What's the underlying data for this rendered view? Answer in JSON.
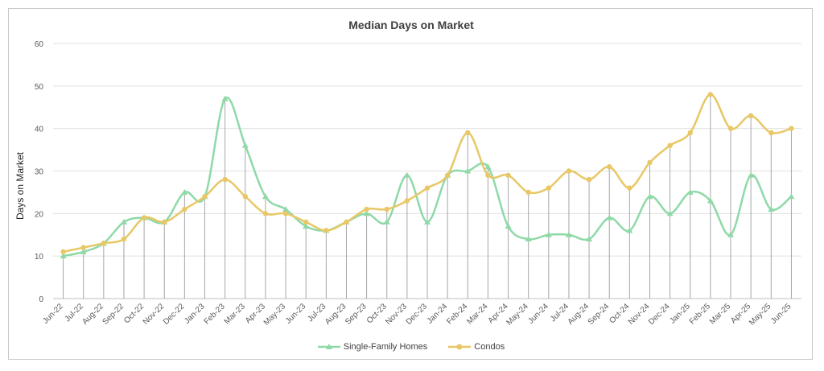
{
  "chart_data": {
    "type": "line",
    "title": "Median Days on Market",
    "ylabel": "Days on Market",
    "xlabel": "",
    "ylim": [
      0,
      60
    ],
    "yticks": [
      0,
      10,
      20,
      30,
      40,
      50,
      60
    ],
    "grid": true,
    "legend": "bottom",
    "categories": [
      "Jun-22",
      "Jul-22",
      "Aug-22",
      "Sep-22",
      "Oct-22",
      "Nov-22",
      "Dec-22",
      "Jan-23",
      "Feb-23",
      "Mar-23",
      "Apr-23",
      "May-23",
      "Jun-23",
      "Jul-23",
      "Aug-23",
      "Sep-23",
      "Oct-23",
      "Nov-23",
      "Dec-23",
      "Jan-24",
      "Feb-24",
      "Mar-24",
      "Apr-24",
      "May-24",
      "Jun-24",
      "Jul-24",
      "Aug-24",
      "Sep-24",
      "Oct-24",
      "Nov-24",
      "Dec-24",
      "Jan-25",
      "Feb-25",
      "Mar-25",
      "Apr-25",
      "May-25",
      "Jun-25"
    ],
    "series": [
      {
        "name": "Single-Family Homes",
        "color": "#8fd9a8",
        "marker": "triangle",
        "values": [
          10,
          11,
          13,
          18,
          19,
          18,
          25,
          24,
          47,
          36,
          24,
          21,
          17,
          16,
          18,
          20,
          18,
          29,
          18,
          29,
          30,
          31,
          17,
          14,
          15,
          15,
          14,
          19,
          16,
          24,
          20,
          25,
          23,
          15,
          29,
          21,
          24
        ]
      },
      {
        "name": "Condos",
        "color": "#e8c766",
        "marker": "circle",
        "values": [
          11,
          12,
          13,
          14,
          19,
          18,
          21,
          24,
          28,
          24,
          20,
          20,
          18,
          16,
          18,
          21,
          21,
          23,
          26,
          29,
          39,
          29,
          29,
          25,
          26,
          30,
          28,
          31,
          26,
          32,
          36,
          39,
          48,
          40,
          43,
          39,
          40
        ]
      }
    ]
  }
}
